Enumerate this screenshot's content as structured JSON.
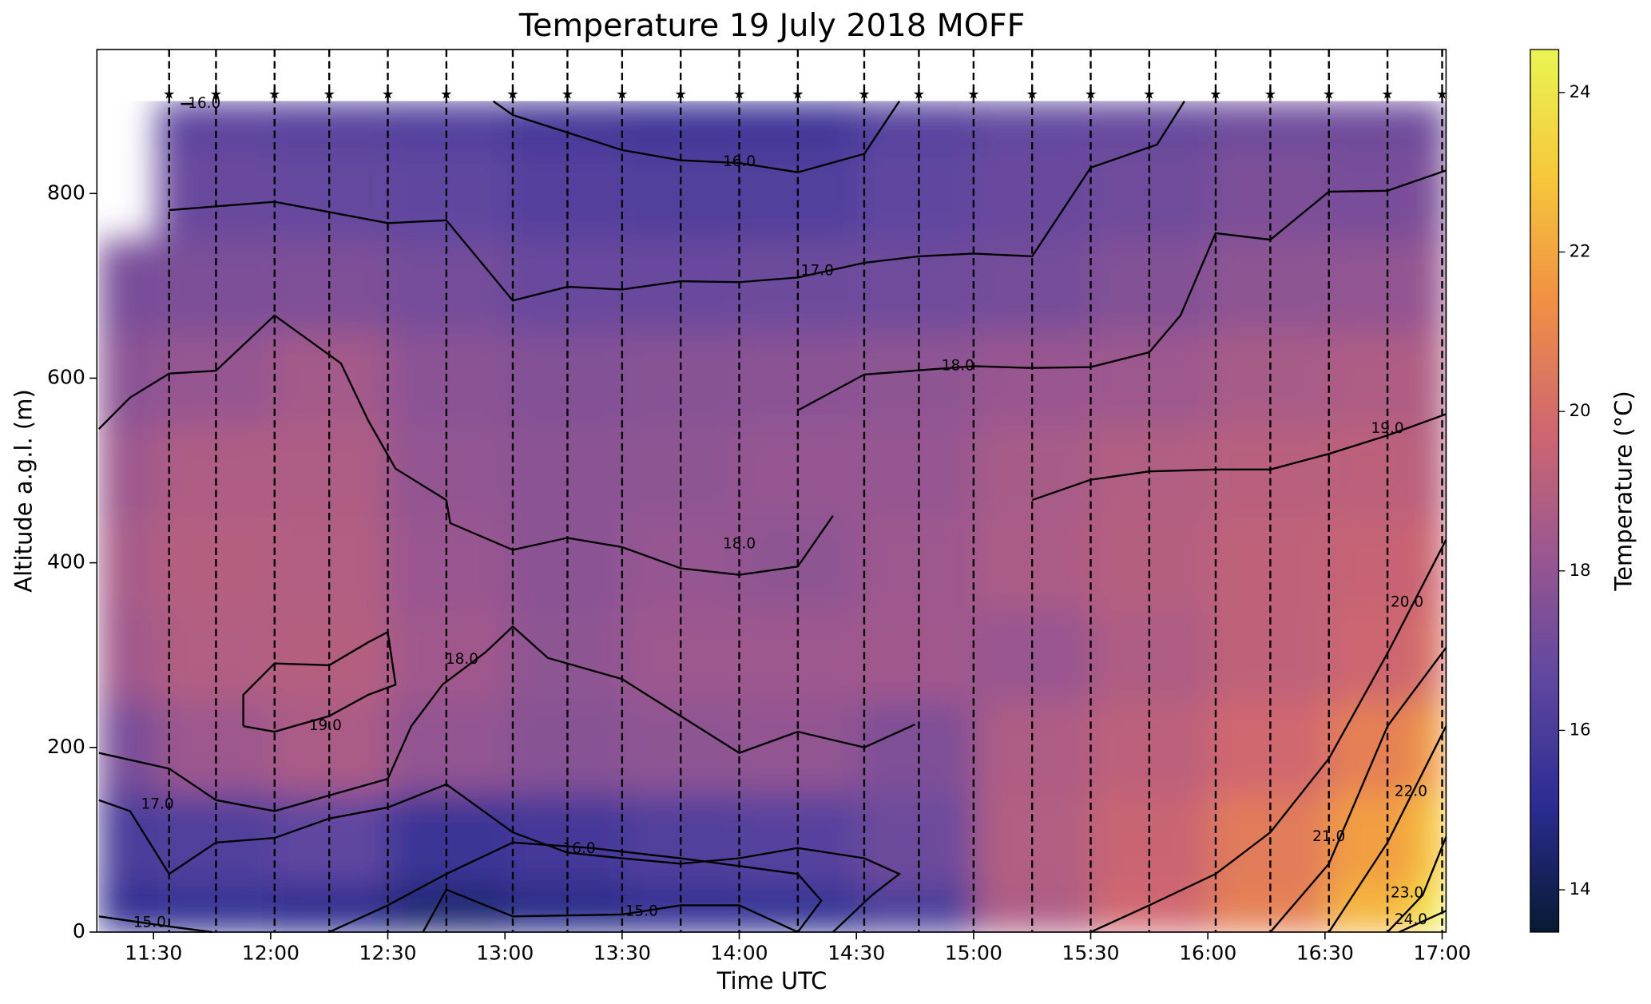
{
  "chart_data": {
    "type": "heatmap",
    "title": "Temperature 19 July 2018 MOFF",
    "xlabel": "Time UTC",
    "ylabel": "Altitude a.g.l. (m)",
    "colorbar_label": "Temperature (°C)",
    "xlim": [
      675.5,
      1021
    ],
    "ylim": [
      0,
      956
    ],
    "xticks": [
      {
        "value": 690,
        "label": "11:30"
      },
      {
        "value": 720,
        "label": "12:00"
      },
      {
        "value": 750,
        "label": "12:30"
      },
      {
        "value": 780,
        "label": "13:00"
      },
      {
        "value": 810,
        "label": "13:30"
      },
      {
        "value": 840,
        "label": "14:00"
      },
      {
        "value": 870,
        "label": "14:30"
      },
      {
        "value": 900,
        "label": "15:00"
      },
      {
        "value": 930,
        "label": "15:30"
      },
      {
        "value": 960,
        "label": "16:00"
      },
      {
        "value": 990,
        "label": "16:30"
      },
      {
        "value": 1020,
        "label": "17:00"
      }
    ],
    "yticks": [
      0,
      200,
      400,
      600,
      800
    ],
    "clim": [
      13.47,
      24.54
    ],
    "cticks": [
      14,
      16,
      18,
      20,
      22,
      24
    ],
    "colorscale": [
      "#071a33",
      "#2b2c92",
      "#5f47a0",
      "#9a5790",
      "#d0676f",
      "#f18f45",
      "#f6c83a",
      "#eaf552"
    ],
    "profile_times": [
      694,
      706,
      721,
      735,
      750,
      765,
      782,
      796,
      810,
      825,
      840,
      855,
      872,
      886,
      900,
      915,
      930,
      945,
      962,
      976,
      991,
      1006,
      1020
    ],
    "field": {
      "x": [
        676,
        706,
        735,
        765,
        796,
        825,
        855,
        886,
        915,
        945,
        976,
        1006,
        1021
      ],
      "y": [
        0,
        100,
        200,
        300,
        400,
        500,
        600,
        700,
        800,
        900
      ],
      "values": [
        [
          15.2,
          15.3,
          15.0,
          14.5,
          14.9,
          15.2,
          15.3,
          16.0,
          18.8,
          19.8,
          20.8,
          22.5,
          24.2
        ],
        [
          16.0,
          16.2,
          16.6,
          15.5,
          15.8,
          16.2,
          16.4,
          17.0,
          18.9,
          19.6,
          20.6,
          21.8,
          23.0
        ],
        [
          17.3,
          18.3,
          18.7,
          18.0,
          17.7,
          17.9,
          18.0,
          17.5,
          18.8,
          19.2,
          19.8,
          20.8,
          21.8
        ],
        [
          18.4,
          18.9,
          19.0,
          18.4,
          17.9,
          18.3,
          18.3,
          18.4,
          18.2,
          18.8,
          19.3,
          19.7,
          20.2
        ],
        [
          18.6,
          19.0,
          18.9,
          18.2,
          17.8,
          18.1,
          17.9,
          18.3,
          18.7,
          19.0,
          19.3,
          19.5,
          19.7
        ],
        [
          18.3,
          18.8,
          18.8,
          18.0,
          17.8,
          17.9,
          18.1,
          18.1,
          18.6,
          18.9,
          19.1,
          19.2,
          19.1
        ],
        [
          17.8,
          18.1,
          18.5,
          17.8,
          17.6,
          17.7,
          17.8,
          17.9,
          18.2,
          18.3,
          18.6,
          18.8,
          18.9
        ],
        [
          17.3,
          17.4,
          17.5,
          17.2,
          16.9,
          16.9,
          17.0,
          17.1,
          17.2,
          17.6,
          17.9,
          18.0,
          18.2
        ],
        [
          null,
          16.9,
          16.8,
          16.6,
          16.3,
          16.2,
          16.2,
          16.6,
          16.9,
          17.1,
          17.4,
          17.3,
          17.4
        ],
        [
          null,
          16.5,
          16.4,
          16.2,
          15.8,
          15.6,
          15.6,
          16.4,
          16.7,
          16.8,
          17.0,
          17.0,
          17.1
        ]
      ]
    },
    "contours": [
      {
        "level": 17,
        "label": "17.0",
        "label_at": [
          860,
          716
        ],
        "points": [
          [
            694,
            782
          ],
          [
            721,
            791
          ],
          [
            750,
            768
          ],
          [
            765,
            771
          ],
          [
            782,
            684
          ],
          [
            796,
            699
          ],
          [
            810,
            696
          ],
          [
            825,
            705
          ],
          [
            840,
            704
          ],
          [
            855,
            709
          ],
          [
            872,
            725
          ],
          [
            886,
            732
          ],
          [
            900,
            735
          ],
          [
            915,
            732
          ],
          [
            930,
            828
          ],
          [
            947,
            853
          ],
          [
            954,
            900
          ]
        ]
      },
      {
        "level": 16,
        "label": "16.0",
        "label_at": [
          840,
          834
        ],
        "points": [
          [
            777,
            900
          ],
          [
            782,
            885
          ],
          [
            810,
            847
          ],
          [
            825,
            836
          ],
          [
            840,
            833
          ],
          [
            855,
            823
          ],
          [
            872,
            843
          ],
          [
            881,
            900
          ]
        ]
      },
      {
        "level": 16,
        "label": "16.0",
        "label_at": [
          703,
          897
        ],
        "points": [
          [
            697,
            897
          ],
          [
            700,
            897
          ]
        ]
      },
      {
        "level": 18,
        "label": "18.0",
        "label_at": [
          896,
          613
        ],
        "points": [
          [
            855,
            565
          ],
          [
            872,
            604
          ],
          [
            900,
            613
          ],
          [
            915,
            611
          ],
          [
            930,
            612
          ],
          [
            945,
            628
          ],
          [
            953,
            668
          ],
          [
            962,
            757
          ],
          [
            976,
            750
          ],
          [
            991,
            802
          ],
          [
            1006,
            803
          ],
          [
            1021,
            825
          ]
        ]
      },
      {
        "level": 18,
        "label": "18.0",
        "label_at": [
          840,
          420
        ],
        "points": [
          [
            676,
            545
          ],
          [
            684,
            579
          ],
          [
            694,
            605
          ],
          [
            706,
            608
          ],
          [
            721,
            668
          ],
          [
            738,
            616
          ],
          [
            745,
            554
          ],
          [
            752,
            502
          ],
          [
            765,
            468
          ],
          [
            766,
            443
          ],
          [
            782,
            414
          ],
          [
            796,
            427
          ],
          [
            810,
            417
          ],
          [
            825,
            394
          ],
          [
            840,
            387
          ],
          [
            855,
            396
          ],
          [
            864,
            451
          ]
        ]
      },
      {
        "level": 18,
        "label": "18.0",
        "label_at": [
          769,
          295
        ],
        "points": [
          [
            676,
            194
          ],
          [
            694,
            177
          ],
          [
            706,
            143
          ],
          [
            721,
            131
          ],
          [
            735,
            148
          ],
          [
            750,
            166
          ],
          [
            756,
            223
          ],
          [
            764,
            268
          ],
          [
            775,
            303
          ],
          [
            782,
            331
          ],
          [
            791,
            297
          ],
          [
            810,
            274
          ],
          [
            825,
            234
          ],
          [
            840,
            194
          ],
          [
            855,
            217
          ],
          [
            872,
            200
          ],
          [
            885,
            225
          ]
        ]
      },
      {
        "level": 17,
        "label": "17.0",
        "label_at": [
          691,
          138
        ],
        "points": [
          [
            676,
            143
          ],
          [
            684,
            131
          ],
          [
            694,
            63
          ],
          [
            706,
            97
          ],
          [
            721,
            102
          ],
          [
            735,
            123
          ],
          [
            750,
            135
          ],
          [
            765,
            160
          ],
          [
            782,
            108
          ],
          [
            796,
            86
          ],
          [
            810,
            80
          ],
          [
            825,
            74
          ],
          [
            840,
            80
          ],
          [
            855,
            91
          ],
          [
            872,
            80
          ],
          [
            881,
            63
          ],
          [
            874,
            40
          ],
          [
            864,
            0
          ]
        ]
      },
      {
        "level": 16,
        "label": "16.0",
        "label_at": [
          799,
          90
        ],
        "points": [
          [
            735,
            0
          ],
          [
            750,
            29
          ],
          [
            765,
            63
          ],
          [
            782,
            97
          ],
          [
            802,
            91
          ],
          [
            825,
            80
          ],
          [
            855,
            63
          ],
          [
            861,
            34
          ],
          [
            855,
            0
          ]
        ]
      },
      {
        "level": 15,
        "label": "15.0",
        "label_at": [
          689,
          10
        ],
        "points": [
          [
            676,
            17
          ],
          [
            694,
            6
          ],
          [
            705,
            0
          ]
        ]
      },
      {
        "level": 15,
        "label": "15.0",
        "label_at": [
          815,
          22
        ],
        "points": [
          [
            759,
            0
          ],
          [
            765,
            46
          ],
          [
            782,
            17
          ],
          [
            810,
            19
          ],
          [
            825,
            29
          ],
          [
            840,
            29
          ],
          [
            855,
            0
          ]
        ]
      },
      {
        "level": 19,
        "label": "19.0",
        "label_at": [
          734,
          223
        ],
        "points": [
          [
            713,
            223
          ],
          [
            713,
            257
          ],
          [
            721,
            291
          ],
          [
            735,
            289
          ],
          [
            745,
            314
          ],
          [
            750,
            325
          ],
          [
            752,
            268
          ],
          [
            745,
            257
          ],
          [
            735,
            234
          ],
          [
            721,
            217
          ],
          [
            713,
            223
          ]
        ]
      },
      {
        "level": 19,
        "label": "19.0",
        "label_at": [
          1006,
          545
        ],
        "points": [
          [
            915,
            468
          ],
          [
            930,
            490
          ],
          [
            945,
            499
          ],
          [
            962,
            501
          ],
          [
            976,
            501
          ],
          [
            991,
            518
          ],
          [
            1006,
            538
          ],
          [
            1021,
            561
          ]
        ]
      },
      {
        "level": 20,
        "label": "20.0",
        "label_at": [
          1011,
          357
        ],
        "points": [
          [
            930,
            0
          ],
          [
            945,
            29
          ],
          [
            962,
            63
          ],
          [
            976,
            108
          ],
          [
            991,
            188
          ],
          [
            1006,
            302
          ],
          [
            1021,
            425
          ]
        ]
      },
      {
        "level": 21,
        "label": "21.0",
        "label_at": [
          991,
          103
        ],
        "points": [
          [
            976,
            0
          ],
          [
            991,
            74
          ],
          [
            1006,
            223
          ],
          [
            1021,
            308
          ]
        ]
      },
      {
        "level": 22,
        "label": "22.0",
        "label_at": [
          1012,
          152
        ],
        "points": [
          [
            991,
            0
          ],
          [
            1006,
            97
          ],
          [
            1021,
            223
          ]
        ]
      },
      {
        "level": 23,
        "label": "23.0",
        "label_at": [
          1011,
          42
        ],
        "points": [
          [
            1006,
            0
          ],
          [
            1015,
            40
          ],
          [
            1021,
            103
          ]
        ]
      },
      {
        "level": 24,
        "label": "24.0",
        "label_at": [
          1012,
          13
        ],
        "points": [
          [
            1009,
            0
          ],
          [
            1021,
            23
          ]
        ]
      }
    ]
  }
}
